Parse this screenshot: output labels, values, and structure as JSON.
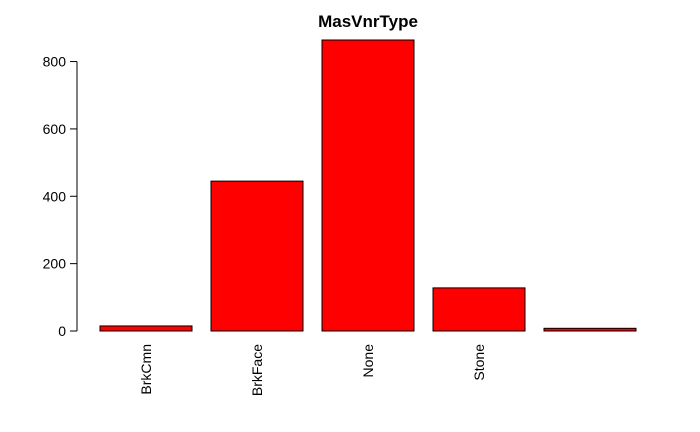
{
  "chart_data": {
    "type": "bar",
    "title": "MasVnrType",
    "xlabel": "",
    "ylabel": "",
    "categories": [
      "BrkCmn",
      "BrkFace",
      "None",
      "Stone",
      ""
    ],
    "values": [
      15,
      445,
      864,
      128,
      8
    ],
    "yticks": [
      0,
      200,
      400,
      600,
      800
    ],
    "ylim": [
      0,
      864
    ],
    "bar_color": "#ff0000",
    "bar_border_color": "#000000",
    "grid": false,
    "legend": "none"
  }
}
